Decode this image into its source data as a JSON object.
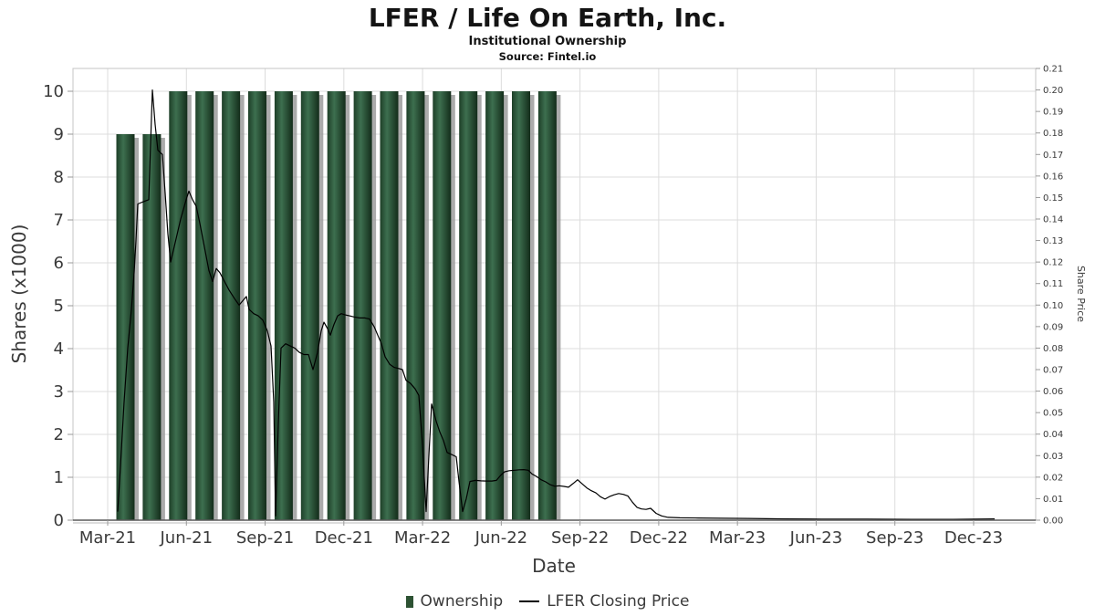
{
  "header": {
    "title": "LFER / Life On Earth, Inc.",
    "subtitle": "Institutional Ownership",
    "source": "Source: Fintel.io"
  },
  "colors": {
    "bar": "#2d5233",
    "bar_gradient": [
      "#1e3f28",
      "#3d6f4f",
      "#132c1a"
    ],
    "bar_shadow": "#9c9c9c",
    "line": "#000000",
    "grid": "#dcdcdc",
    "border": "#c4c4c4",
    "axis_spine": "#5a5a5a",
    "tick": "#999999",
    "text": "#3a3a3a"
  },
  "chart_data": {
    "type": "bar+line",
    "title": "LFER / Life On Earth, Inc.",
    "subtitle": "Institutional Ownership",
    "source": "Source: Fintel.io",
    "xlabel": "Date",
    "ylabel_left": "Shares (x1000)",
    "ylabel_right": "Share Price",
    "grid": true,
    "legend_position": "bottom",
    "ylim_left": [
      0,
      10.5
    ],
    "ylim_right": [
      0,
      0.21
    ],
    "x_tick_labels": [
      "Mar-21",
      "Jun-21",
      "Sep-21",
      "Dec-21",
      "Mar-22",
      "Jun-22",
      "Sep-22",
      "Dec-22",
      "Mar-23",
      "Jun-23",
      "Sep-23",
      "Dec-23"
    ],
    "y_left_ticks": [
      0,
      1,
      2,
      3,
      4,
      5,
      6,
      7,
      8,
      9,
      10
    ],
    "y_right_ticks": [
      "0.00",
      "0.01",
      "0.02",
      "0.03",
      "0.04",
      "0.05",
      "0.06",
      "0.07",
      "0.08",
      "0.09",
      "0.10",
      "0.11",
      "0.12",
      "0.13",
      "0.14",
      "0.15",
      "0.16",
      "0.17",
      "0.18",
      "0.19",
      "0.20",
      "0.21"
    ],
    "bars": {
      "name": "Ownership",
      "unit": "shares x1000",
      "months": [
        "Mar-21",
        "Apr-21",
        "May-21",
        "Jun-21",
        "Jul-21",
        "Aug-21",
        "Sep-21",
        "Oct-21",
        "Nov-21",
        "Dec-21",
        "Jan-22",
        "Feb-22",
        "Mar-22",
        "Apr-22",
        "May-22",
        "Jun-22",
        "Jul-22"
      ],
      "values": [
        9,
        9,
        10,
        10,
        10,
        10,
        10,
        10,
        10,
        10,
        10,
        10,
        10,
        10,
        10,
        10,
        10
      ]
    },
    "line": {
      "name": "LFER Closing Price",
      "unit": "USD",
      "points": [
        [
          129,
          0.004
        ],
        [
          132,
          0.025
        ],
        [
          136,
          0.055
        ],
        [
          140,
          0.08
        ],
        [
          144,
          0.098
        ],
        [
          147,
          0.115
        ],
        [
          149,
          0.13
        ],
        [
          151,
          0.147
        ],
        [
          157,
          0.148
        ],
        [
          163,
          0.149
        ],
        [
          167,
          0.2
        ],
        [
          170,
          0.184
        ],
        [
          173,
          0.172
        ],
        [
          178,
          0.17
        ],
        [
          181,
          0.152
        ],
        [
          184,
          0.133
        ],
        [
          187,
          0.12
        ],
        [
          192,
          0.129
        ],
        [
          198,
          0.14
        ],
        [
          204,
          0.149
        ],
        [
          207,
          0.153
        ],
        [
          211,
          0.149
        ],
        [
          215,
          0.146
        ],
        [
          219,
          0.138
        ],
        [
          224,
          0.127
        ],
        [
          229,
          0.116
        ],
        [
          233,
          0.111
        ],
        [
          237,
          0.117
        ],
        [
          241,
          0.115
        ],
        [
          246,
          0.111
        ],
        [
          251,
          0.107
        ],
        [
          257,
          0.103
        ],
        [
          262,
          0.1
        ],
        [
          266,
          0.102
        ],
        [
          270,
          0.104
        ],
        [
          273,
          0.098
        ],
        [
          278,
          0.096
        ],
        [
          283,
          0.095
        ],
        [
          288,
          0.093
        ],
        [
          293,
          0.088
        ],
        [
          297,
          0.081
        ],
        [
          300,
          0.055
        ],
        [
          302,
          0.002
        ],
        [
          305,
          0.045
        ],
        [
          308,
          0.08
        ],
        [
          313,
          0.082
        ],
        [
          318,
          0.081
        ],
        [
          323,
          0.08
        ],
        [
          328,
          0.078
        ],
        [
          333,
          0.077
        ],
        [
          338,
          0.077
        ],
        [
          343,
          0.07
        ],
        [
          348,
          0.078
        ],
        [
          352,
          0.088
        ],
        [
          355,
          0.092
        ],
        [
          359,
          0.089
        ],
        [
          362,
          0.086
        ],
        [
          366,
          0.091
        ],
        [
          370,
          0.095
        ],
        [
          374,
          0.096
        ],
        [
          378,
          0.0955
        ],
        [
          383,
          0.095
        ],
        [
          388,
          0.0945
        ],
        [
          394,
          0.094
        ],
        [
          400,
          0.094
        ],
        [
          405,
          0.0935
        ],
        [
          410,
          0.09
        ],
        [
          414,
          0.086
        ],
        [
          418,
          0.082
        ],
        [
          422,
          0.076
        ],
        [
          427,
          0.0725
        ],
        [
          432,
          0.071
        ],
        [
          437,
          0.0705
        ],
        [
          441,
          0.07
        ],
        [
          445,
          0.065
        ],
        [
          450,
          0.0635
        ],
        [
          455,
          0.061
        ],
        [
          459,
          0.058
        ],
        [
          463,
          0.035
        ],
        [
          467,
          0.004
        ],
        [
          470,
          0.03
        ],
        [
          473,
          0.054
        ],
        [
          478,
          0.046
        ],
        [
          482,
          0.041
        ],
        [
          486,
          0.037
        ],
        [
          490,
          0.0315
        ],
        [
          495,
          0.0305
        ],
        [
          500,
          0.0295
        ],
        [
          503,
          0.018
        ],
        [
          507,
          0.004
        ],
        [
          511,
          0.01
        ],
        [
          515,
          0.018
        ],
        [
          521,
          0.0185
        ],
        [
          527,
          0.0183
        ],
        [
          533,
          0.0182
        ],
        [
          539,
          0.0182
        ],
        [
          544,
          0.0185
        ],
        [
          549,
          0.021
        ],
        [
          553,
          0.0225
        ],
        [
          558,
          0.023
        ],
        [
          564,
          0.0232
        ],
        [
          569,
          0.0234
        ],
        [
          574,
          0.0235
        ],
        [
          579,
          0.0232
        ],
        [
          583,
          0.0215
        ],
        [
          588,
          0.0203
        ],
        [
          593,
          0.0188
        ],
        [
          598,
          0.0178
        ],
        [
          603,
          0.0165
        ],
        [
          608,
          0.0158
        ],
        [
          613,
          0.016
        ],
        [
          618,
          0.0157
        ],
        [
          623,
          0.0153
        ],
        [
          628,
          0.017
        ],
        [
          633,
          0.0188
        ],
        [
          638,
          0.0169
        ],
        [
          643,
          0.015
        ],
        [
          648,
          0.0137
        ],
        [
          653,
          0.0127
        ],
        [
          658,
          0.0109
        ],
        [
          663,
          0.0098
        ],
        [
          668,
          0.011
        ],
        [
          673,
          0.0118
        ],
        [
          678,
          0.0124
        ],
        [
          683,
          0.012
        ],
        [
          688,
          0.0113
        ],
        [
          693,
          0.0084
        ],
        [
          698,
          0.006
        ],
        [
          703,
          0.0052
        ],
        [
          708,
          0.005
        ],
        [
          713,
          0.0055
        ],
        [
          719,
          0.0032
        ],
        [
          725,
          0.002
        ],
        [
          732,
          0.0013
        ],
        [
          745,
          0.0011
        ],
        [
          765,
          0.001
        ],
        [
          790,
          0.0009
        ],
        [
          820,
          0.0008
        ],
        [
          860,
          0.0006
        ],
        [
          900,
          0.0005
        ],
        [
          950,
          0.0005
        ],
        [
          1000,
          0.0004
        ],
        [
          1045,
          0.0004
        ],
        [
          1090,
          0.0006
        ]
      ]
    }
  }
}
